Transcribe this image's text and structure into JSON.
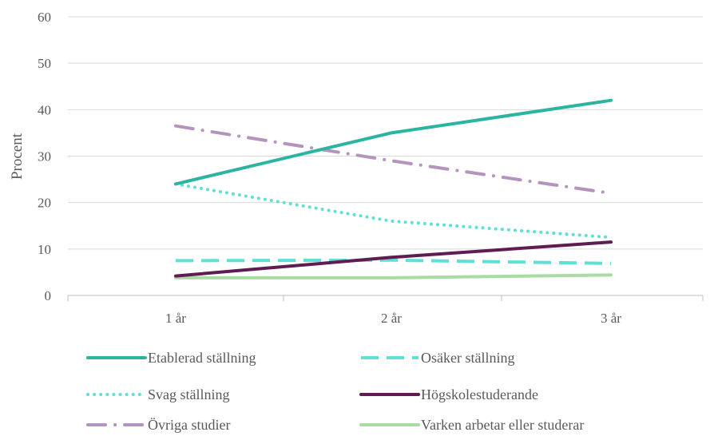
{
  "chart_data": {
    "type": "line",
    "title": "",
    "xlabel": "",
    "ylabel": "Procent",
    "ylim": [
      0,
      60
    ],
    "yticks": [
      "0",
      "10",
      "20",
      "30",
      "40",
      "50",
      "60"
    ],
    "categories": [
      "1 år",
      "2 år",
      "3 år"
    ],
    "grid": true,
    "legend_position": "bottom",
    "series": [
      {
        "name": "Etablerad ställning",
        "values": [
          24,
          35,
          42
        ],
        "color": "#2bb5a0",
        "style": "solid"
      },
      {
        "name": "Osäker ställning",
        "values": [
          7.5,
          7.6,
          6.9
        ],
        "color": "#5ee0d6",
        "style": "dashed"
      },
      {
        "name": "Svag ställning",
        "values": [
          24,
          16,
          12.5
        ],
        "color": "#5ee0d6",
        "style": "dotted"
      },
      {
        "name": "Högskolestuderande",
        "values": [
          4.2,
          8.2,
          11.5
        ],
        "color": "#5e1c52",
        "style": "solid"
      },
      {
        "name": "Övriga studier",
        "values": [
          36.5,
          29,
          22
        ],
        "color": "#b494bc",
        "style": "dash-dot"
      },
      {
        "name": "Varken arbetar eller studerar",
        "values": [
          3.8,
          3.8,
          4.4
        ],
        "color": "#a9dba4",
        "style": "solid"
      }
    ]
  }
}
